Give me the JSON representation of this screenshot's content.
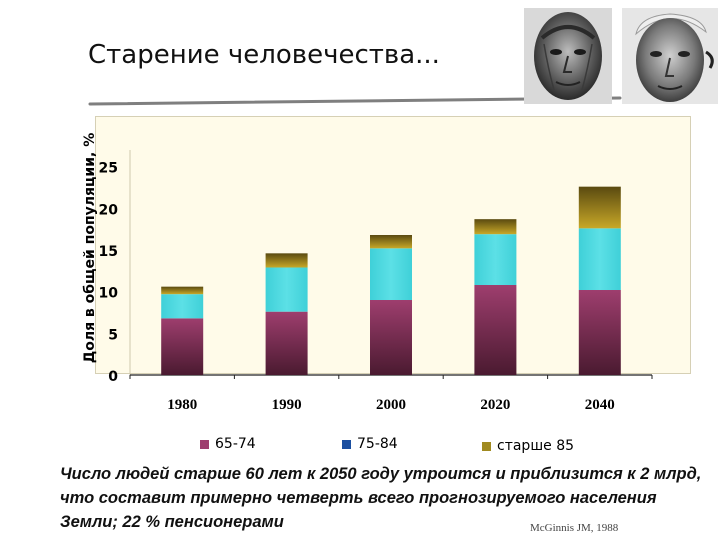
{
  "slide": {
    "title": "Старение человечества...",
    "caption": "Число людей старше 60 лет к 2050 году утроится и приблизится к 2 млрд, что составит примерно четверть всего прогнозируемого населения Земли; 22 % пенсионерами",
    "source": "McGinnis JM, 1988"
  },
  "icons": {
    "photo_left": "elderly-man-portrait-icon",
    "photo_right": "elderly-man-portrait-icon"
  },
  "chart_data": {
    "type": "bar",
    "stacked": true,
    "title": "",
    "xlabel": "",
    "ylabel": "Доля в общей популяции, %",
    "ylim": [
      0,
      27
    ],
    "yticks": [
      0,
      5,
      10,
      15,
      20,
      25
    ],
    "categories": [
      "1980",
      "1990",
      "2000",
      "2020",
      "2040"
    ],
    "series": [
      {
        "name": "65-74",
        "color": "#9e3e6e",
        "values": [
          6.8,
          7.6,
          9.0,
          10.8,
          10.2
        ]
      },
      {
        "name": "75-84",
        "color": "#3fd0d8",
        "values": [
          2.9,
          5.3,
          6.2,
          6.1,
          7.4
        ]
      },
      {
        "name": "старше 85",
        "color": "#b09020",
        "values": [
          0.9,
          1.7,
          1.6,
          1.8,
          5.0
        ]
      }
    ],
    "legend": [
      {
        "name": "65-74",
        "color": "#9e3e6e"
      },
      {
        "name": "75-84",
        "color": "#1b4fa0"
      },
      {
        "name": "старше 85",
        "color": "#a08a20"
      }
    ],
    "grid": false,
    "legend_position": "bottom"
  }
}
